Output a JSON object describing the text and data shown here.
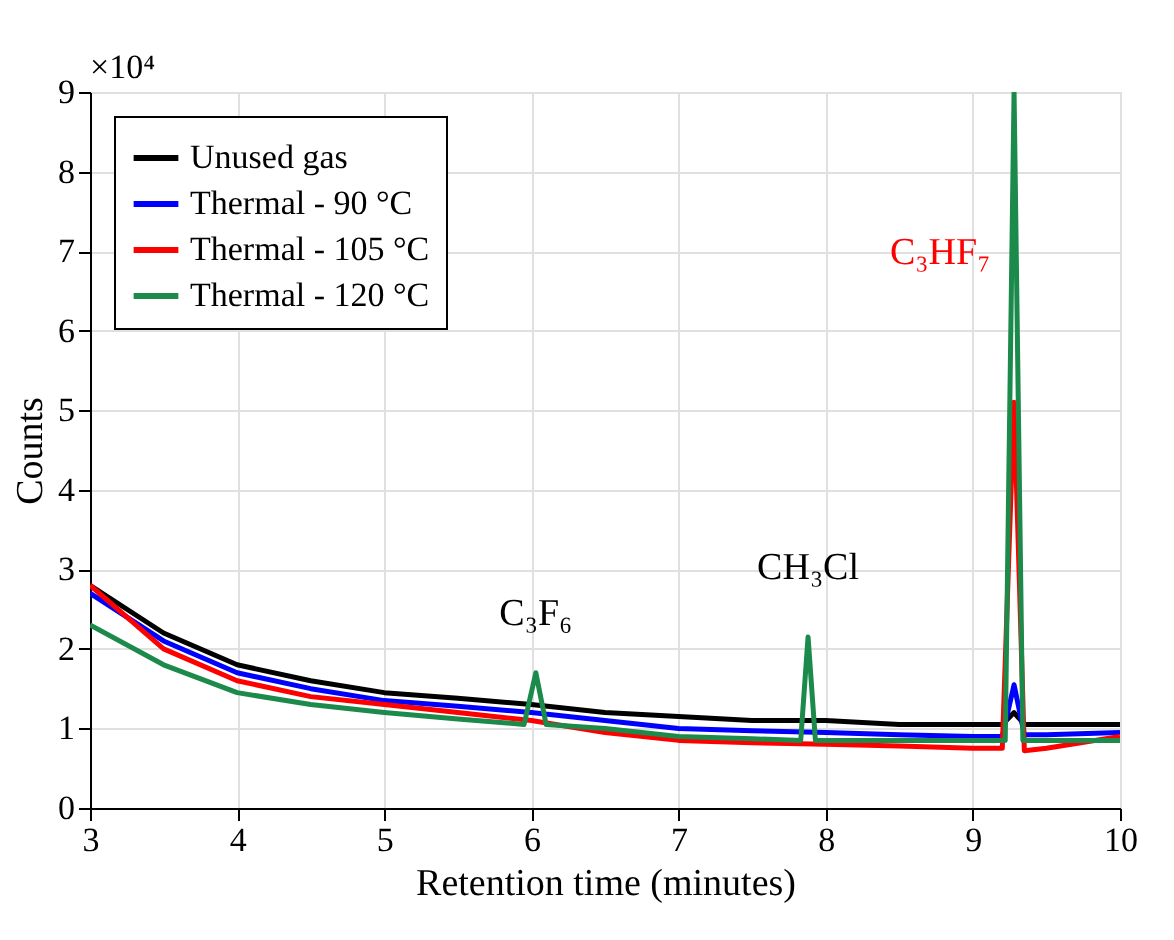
{
  "chart_data": {
    "type": "line",
    "xlabel": "Retention time (minutes)",
    "ylabel": "Counts",
    "xlim": [
      3,
      10
    ],
    "ylim": [
      0,
      9
    ],
    "xticks": [
      3,
      4,
      5,
      6,
      7,
      8,
      9,
      10
    ],
    "yticks": [
      0,
      1,
      2,
      3,
      4,
      5,
      6,
      7,
      8,
      9
    ],
    "grid": true,
    "legend": "top left",
    "marker": "none",
    "line_style": "solid",
    "annotations": [
      "×10⁴",
      {
        "text": "C₃F₆",
        "x": 6.03,
        "y": 1.7
      },
      {
        "text": "CH₃Cl",
        "x": 7.88,
        "y": 2.15
      },
      "C₃HF₇"
    ],
    "series": [
      {
        "name": "Unused gas",
        "color": "#000000",
        "x": [
          3,
          3.5,
          4,
          4.5,
          5,
          5.5,
          6,
          6.5,
          7,
          7.5,
          8,
          8.5,
          9,
          9.2,
          9.28,
          9.35,
          9.5,
          10
        ],
        "values": [
          2.8,
          2.2,
          1.8,
          1.6,
          1.45,
          1.38,
          1.3,
          1.2,
          1.15,
          1.1,
          1.1,
          1.05,
          1.05,
          1.05,
          1.2,
          1.05,
          1.05,
          1.05
        ]
      },
      {
        "name": "Thermal - 90 °C",
        "color": "#0000ff",
        "x": [
          3,
          3.5,
          4,
          4.5,
          5,
          5.5,
          6,
          6.5,
          7,
          7.5,
          8,
          8.5,
          9,
          9.2,
          9.28,
          9.35,
          9.5,
          10
        ],
        "values": [
          2.7,
          2.1,
          1.7,
          1.5,
          1.35,
          1.28,
          1.2,
          1.1,
          1.0,
          0.97,
          0.95,
          0.92,
          0.9,
          0.9,
          1.55,
          0.92,
          0.92,
          0.95
        ]
      },
      {
        "name": "Thermal - 105 °C",
        "color": "#ff0000",
        "x": [
          3,
          3.5,
          4,
          4.5,
          5,
          5.5,
          6,
          6.5,
          7,
          7.5,
          8,
          8.5,
          9,
          9.2,
          9.28,
          9.35,
          9.5,
          10
        ],
        "values": [
          2.8,
          2.0,
          1.6,
          1.4,
          1.3,
          1.2,
          1.1,
          0.95,
          0.85,
          0.82,
          0.8,
          0.78,
          0.75,
          0.75,
          5.1,
          0.72,
          0.75,
          0.9
        ]
      },
      {
        "name": "Thermal - 120 °C",
        "color": "#1b8a4a",
        "x": [
          3,
          3.5,
          4,
          4.5,
          5,
          5.5,
          5.95,
          6.03,
          6.1,
          6.5,
          7,
          7.5,
          7.83,
          7.88,
          7.93,
          8.5,
          9,
          9.22,
          9.28,
          9.34,
          9.5,
          10
        ],
        "values": [
          2.3,
          1.8,
          1.45,
          1.3,
          1.2,
          1.12,
          1.05,
          1.7,
          1.05,
          1.0,
          0.9,
          0.87,
          0.85,
          2.15,
          0.85,
          0.85,
          0.85,
          0.85,
          9,
          0.85,
          0.85,
          0.85
        ]
      }
    ]
  }
}
